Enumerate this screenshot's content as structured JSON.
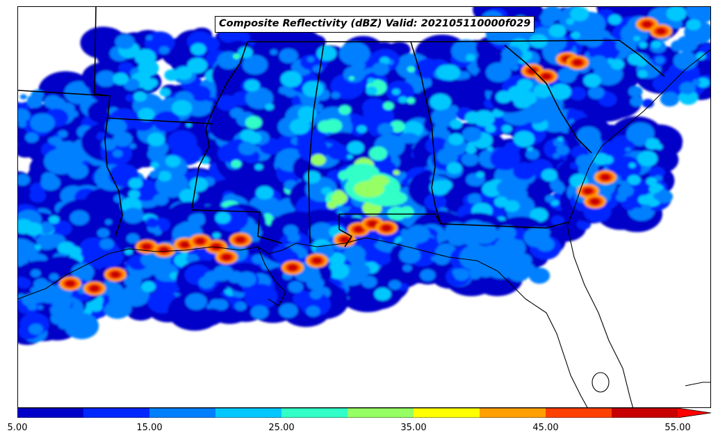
{
  "title": "Composite Reflectivity (dBZ) Valid: 202105110000f029",
  "colorbar": {
    "min": 5,
    "max": 55,
    "step": 5,
    "extend": "max",
    "colors": [
      "#0000c8",
      "#0028ff",
      "#0080ff",
      "#00c8ff",
      "#32ffc8",
      "#96ff64",
      "#ffff00",
      "#ffa000",
      "#ff4000",
      "#c80000",
      "#ff0000"
    ],
    "tick_labels": [
      "5.00",
      "15.00",
      "25.00",
      "35.00",
      "45.00",
      "55.00"
    ]
  },
  "map": {
    "region": "Southeastern United States",
    "field": "composite reflectivity",
    "units": "dBZ",
    "boundaries": [
      "state",
      "coastline"
    ]
  }
}
